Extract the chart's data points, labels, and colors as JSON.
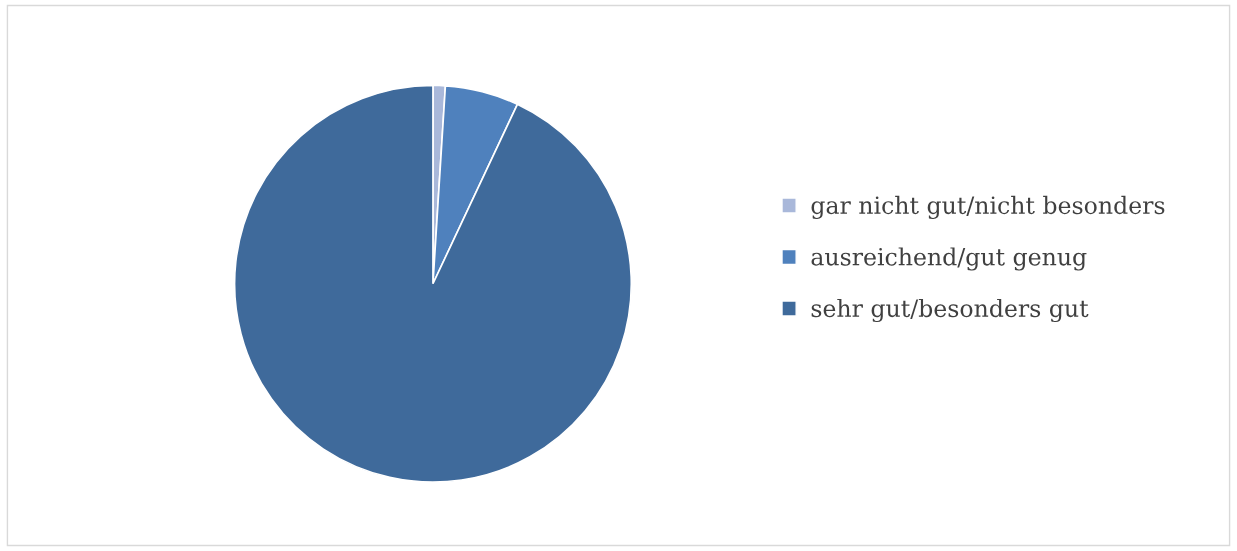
{
  "chart_data": {
    "type": "pie",
    "categories": [
      "gar nicht gut/nicht besonders",
      "ausreichend/gut genug",
      "sehr gut/besonders gut"
    ],
    "values": [
      1,
      6,
      93
    ],
    "colors": [
      "#a9b8da",
      "#4f81bd",
      "#3f6a9b"
    ],
    "legend": "right"
  }
}
